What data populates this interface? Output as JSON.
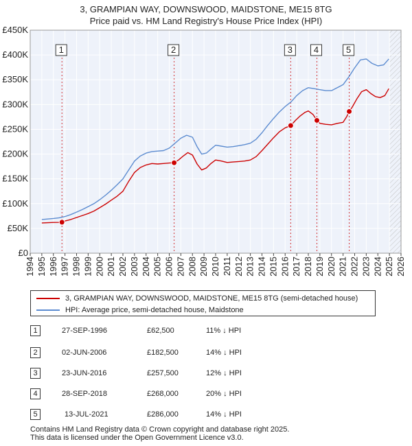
{
  "title": {
    "line1": "3, GRAMPIAN WAY, DOWNSWOOD, MAIDSTONE, ME15 8TG",
    "line2": "Price paid vs. HM Land Registry's House Price Index (HPI)"
  },
  "chart_data": {
    "type": "line",
    "xlim": [
      1994,
      2026
    ],
    "ylim": [
      0,
      450000
    ],
    "x_ticks": [
      "1994",
      "1995",
      "1996",
      "1997",
      "1998",
      "1999",
      "2000",
      "2001",
      "2002",
      "2003",
      "2004",
      "2005",
      "2006",
      "2007",
      "2008",
      "2009",
      "2010",
      "2011",
      "2012",
      "2013",
      "2014",
      "2015",
      "2016",
      "2017",
      "2018",
      "2019",
      "2020",
      "2021",
      "2022",
      "2023",
      "2024",
      "2025",
      "2026"
    ],
    "y_ticks": [
      {
        "value": 0,
        "label": "£0"
      },
      {
        "value": 50000,
        "label": "£50K"
      },
      {
        "value": 100000,
        "label": "£100K"
      },
      {
        "value": 150000,
        "label": "£150K"
      },
      {
        "value": 200000,
        "label": "£200K"
      },
      {
        "value": 250000,
        "label": "£250K"
      },
      {
        "value": 300000,
        "label": "£300K"
      },
      {
        "value": 350000,
        "label": "£350K"
      },
      {
        "value": 400000,
        "label": "£400K"
      },
      {
        "value": 450000,
        "label": "£450K"
      }
    ],
    "grid": true,
    "data_end_year": 2025.0,
    "series": [
      {
        "name": "3, GRAMPIAN WAY, DOWNSWOOD, MAIDSTONE, ME15 8TG (semi-detached house)",
        "color": "#cc0000",
        "x": [
          1995.0,
          1995.5,
          1996.0,
          1996.5,
          1996.74,
          1997.0,
          1997.5,
          1998.0,
          1998.5,
          1999.0,
          1999.5,
          2000.0,
          2000.5,
          2001.0,
          2001.5,
          2002.0,
          2002.5,
          2003.0,
          2003.5,
          2004.0,
          2004.5,
          2005.0,
          2005.5,
          2006.0,
          2006.42,
          2006.8,
          2007.2,
          2007.6,
          2008.0,
          2008.4,
          2008.8,
          2009.2,
          2009.6,
          2010.0,
          2010.5,
          2011.0,
          2011.5,
          2012.0,
          2012.5,
          2013.0,
          2013.5,
          2014.0,
          2014.5,
          2015.0,
          2015.5,
          2016.0,
          2016.48,
          2016.9,
          2017.3,
          2017.7,
          2018.0,
          2018.4,
          2018.74,
          2019.0,
          2019.5,
          2020.0,
          2020.5,
          2021.0,
          2021.3,
          2021.53,
          2021.8,
          2022.2,
          2022.6,
          2023.0,
          2023.4,
          2023.8,
          2024.2,
          2024.6,
          2024.95
        ],
        "y": [
          61000,
          61500,
          62000,
          62200,
          62500,
          65000,
          68000,
          72000,
          76000,
          80000,
          85000,
          92000,
          99000,
          107000,
          115000,
          125000,
          145000,
          163000,
          173000,
          178000,
          181000,
          180000,
          181000,
          182000,
          182500,
          188000,
          196000,
          203000,
          198000,
          180000,
          168000,
          172000,
          181000,
          188000,
          186000,
          183000,
          184000,
          185000,
          186000,
          188000,
          195000,
          207000,
          220000,
          233000,
          245000,
          253000,
          257500,
          268000,
          277000,
          284000,
          287000,
          280000,
          268000,
          262000,
          260000,
          259000,
          262000,
          264000,
          275000,
          286000,
          295000,
          312000,
          326000,
          330000,
          322000,
          316000,
          314000,
          318000,
          332000
        ]
      },
      {
        "name": "HPI: Average price, semi-detached house, Maidstone",
        "color": "#5b8bd0",
        "x": [
          1995.0,
          1995.5,
          1996.0,
          1996.5,
          1997.0,
          1997.5,
          1998.0,
          1998.5,
          1999.0,
          1999.5,
          2000.0,
          2000.5,
          2001.0,
          2001.5,
          2002.0,
          2002.5,
          2003.0,
          2003.5,
          2004.0,
          2004.5,
          2005.0,
          2005.5,
          2006.0,
          2006.5,
          2007.0,
          2007.5,
          2008.0,
          2008.4,
          2008.8,
          2009.2,
          2009.6,
          2010.0,
          2010.5,
          2011.0,
          2011.5,
          2012.0,
          2012.5,
          2013.0,
          2013.5,
          2014.0,
          2014.5,
          2015.0,
          2015.5,
          2016.0,
          2016.5,
          2017.0,
          2017.5,
          2018.0,
          2018.5,
          2019.0,
          2019.5,
          2020.0,
          2020.5,
          2021.0,
          2021.5,
          2022.0,
          2022.5,
          2023.0,
          2023.5,
          2024.0,
          2024.5,
          2024.95
        ],
        "y": [
          68000,
          69000,
          70000,
          71500,
          74000,
          78000,
          83000,
          88000,
          94000,
          100000,
          108000,
          117000,
          127000,
          138000,
          150000,
          168000,
          186000,
          196000,
          202000,
          205000,
          206000,
          207000,
          212000,
          222000,
          232000,
          238000,
          234000,
          215000,
          200000,
          202000,
          210000,
          218000,
          216000,
          214000,
          215000,
          217000,
          219000,
          222000,
          230000,
          243000,
          258000,
          272000,
          285000,
          296000,
          305000,
          318000,
          328000,
          334000,
          332000,
          330000,
          328000,
          328000,
          334000,
          340000,
          356000,
          374000,
          390000,
          392000,
          383000,
          378000,
          380000,
          392000
        ]
      }
    ],
    "vlines_color": "#cc0000",
    "sale_points": [
      {
        "n": "1",
        "year": 1996.74,
        "price": 62500
      },
      {
        "n": "2",
        "year": 2006.42,
        "price": 182500
      },
      {
        "n": "3",
        "year": 2016.48,
        "price": 257500
      },
      {
        "n": "4",
        "year": 2018.74,
        "price": 268000
      },
      {
        "n": "5",
        "year": 2021.53,
        "price": 286000
      }
    ],
    "future_hatch_start": 2025.0
  },
  "legend": {
    "items": [
      {
        "label": "3, GRAMPIAN WAY, DOWNSWOOD, MAIDSTONE, ME15 8TG (semi-detached house)",
        "color": "#cc0000"
      },
      {
        "label": "HPI: Average price, semi-detached house, Maidstone",
        "color": "#5b8bd0"
      }
    ]
  },
  "sales": [
    {
      "n": "1",
      "date": "27-SEP-1996",
      "price": "£62,500",
      "delta": "11% ↓ HPI"
    },
    {
      "n": "2",
      "date": "02-JUN-2006",
      "price": "£182,500",
      "delta": "14% ↓ HPI"
    },
    {
      "n": "3",
      "date": "23-JUN-2016",
      "price": "£257,500",
      "delta": "12% ↓ HPI"
    },
    {
      "n": "4",
      "date": "28-SEP-2018",
      "price": "£268,000",
      "delta": "20% ↓ HPI"
    },
    {
      "n": "5",
      "date": "13-JUL-2021",
      "price": "£286,000",
      "delta": "14% ↓ HPI"
    }
  ],
  "footer": {
    "line1": "Contains HM Land Registry data © Crown copyright and database right 2025.",
    "line2": "This data is licensed under the Open Government Licence v3.0."
  }
}
